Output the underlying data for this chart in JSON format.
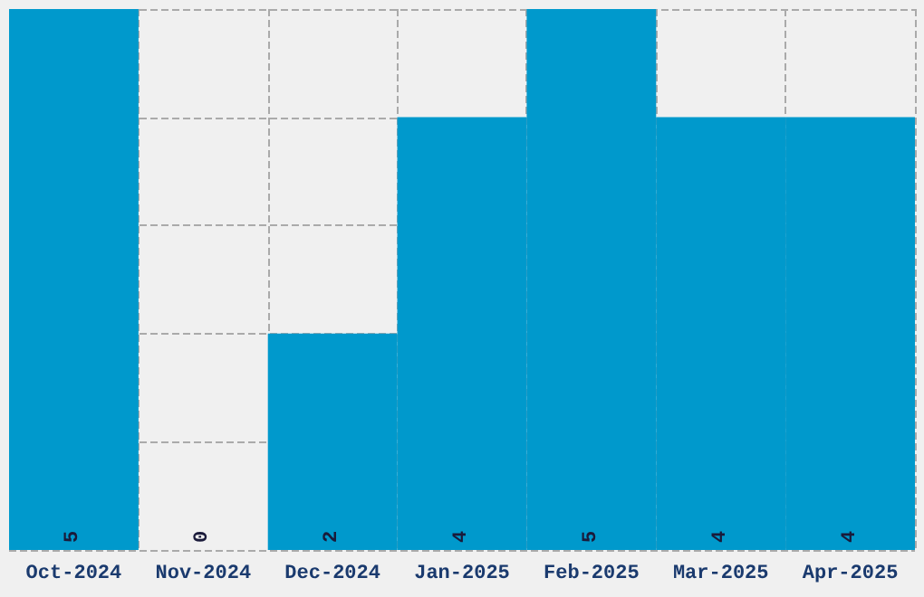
{
  "chart_data": {
    "type": "bar",
    "categories": [
      "Oct-2024",
      "Nov-2024",
      "Dec-2024",
      "Jan-2025",
      "Feb-2025",
      "Mar-2025",
      "Apr-2025"
    ],
    "values": [
      5,
      0,
      2,
      4,
      5,
      4,
      4
    ],
    "color": "#0099cc",
    "data_labels": true,
    "grid": true,
    "tick_labels": "x"
  }
}
